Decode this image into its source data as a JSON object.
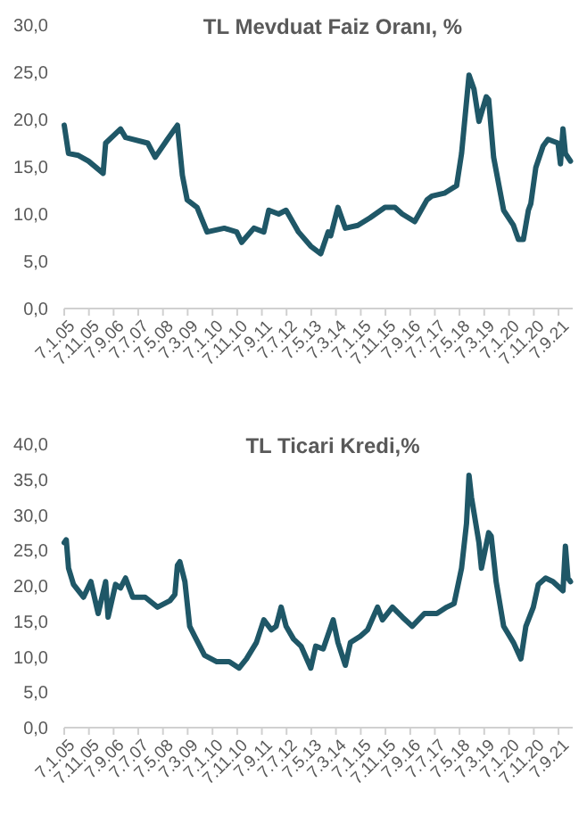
{
  "chart_data": [
    {
      "type": "line",
      "title": "TL  Mevduat Faiz Oranı, %",
      "grid": false,
      "ylim": [
        0,
        30
      ],
      "yticks": [
        {
          "value": 0,
          "label": "0,0"
        },
        {
          "value": 5,
          "label": "5,0"
        },
        {
          "value": 10,
          "label": "10,0"
        },
        {
          "value": 15,
          "label": "15,0"
        },
        {
          "value": 20,
          "label": "20,0"
        },
        {
          "value": 25,
          "label": "25,0"
        },
        {
          "value": 30,
          "label": "30,0"
        }
      ],
      "xlim": [
        "2005-01-07",
        "2022-03-01"
      ],
      "xticks": [
        {
          "value": "2005-01-07",
          "label": "7.1.05"
        },
        {
          "value": "2005-11-07",
          "label": "7.11.05"
        },
        {
          "value": "2006-09-07",
          "label": "7.9.06"
        },
        {
          "value": "2007-07-07",
          "label": "7.7.07"
        },
        {
          "value": "2008-05-07",
          "label": "7.5.08"
        },
        {
          "value": "2009-03-07",
          "label": "7.3.09"
        },
        {
          "value": "2010-01-07",
          "label": "7.1.10"
        },
        {
          "value": "2010-11-07",
          "label": "7.11.10"
        },
        {
          "value": "2011-09-07",
          "label": "7.9.11"
        },
        {
          "value": "2012-07-07",
          "label": "7.7.12"
        },
        {
          "value": "2013-05-07",
          "label": "7.5.13"
        },
        {
          "value": "2014-03-07",
          "label": "7.3.14"
        },
        {
          "value": "2015-01-07",
          "label": "7.1.15"
        },
        {
          "value": "2015-11-07",
          "label": "7.11.15"
        },
        {
          "value": "2016-09-07",
          "label": "7.9.16"
        },
        {
          "value": "2017-07-07",
          "label": "7.7.17"
        },
        {
          "value": "2018-05-07",
          "label": "7.5.18"
        },
        {
          "value": "2019-03-07",
          "label": "7.3.19"
        },
        {
          "value": "2020-01-07",
          "label": "7.1.20"
        },
        {
          "value": "2020-11-07",
          "label": "7.11.20"
        },
        {
          "value": "2021-09-07",
          "label": "7.9.21"
        }
      ],
      "series": [
        {
          "color": "#1f5767",
          "x": [
            "2005-01-07",
            "2005-03",
            "2005-07",
            "2005-11",
            "2006-05",
            "2006-06",
            "2006-12",
            "2007-02",
            "2007-11",
            "2008-02",
            "2008-07",
            "2008-11",
            "2009-01",
            "2009-03",
            "2009-07",
            "2009-11",
            "2010-06",
            "2010-11",
            "2011-01",
            "2011-06",
            "2011-10",
            "2011-12",
            "2012-04",
            "2012-07",
            "2012-12",
            "2013-05",
            "2013-09",
            "2013-12",
            "2014-01",
            "2014-04",
            "2014-07",
            "2014-12",
            "2015-05",
            "2015-11",
            "2016-03",
            "2016-06",
            "2016-11",
            "2017-04",
            "2017-06",
            "2017-11",
            "2018-04",
            "2018-06",
            "2018-09",
            "2018-11",
            "2019-01",
            "2019-04",
            "2019-05",
            "2019-07",
            "2019-11",
            "2020-03",
            "2020-05",
            "2020-07",
            "2020-09",
            "2020-10",
            "2020-12",
            "2021-03",
            "2021-05",
            "2021-09",
            "2021-10",
            "2021-11",
            "2021-12",
            "2022-02"
          ],
          "values": [
            19.4,
            16.4,
            16.2,
            15.6,
            14.3,
            17.5,
            19.0,
            18.1,
            17.5,
            16.0,
            17.9,
            19.4,
            14.1,
            11.5,
            10.7,
            8.1,
            8.5,
            8.1,
            7.0,
            8.5,
            8.1,
            10.4,
            10.0,
            10.4,
            8.1,
            6.6,
            5.8,
            8.1,
            7.7,
            10.7,
            8.5,
            8.8,
            9.6,
            10.7,
            10.7,
            10.0,
            9.2,
            11.5,
            11.9,
            12.2,
            13.0,
            16.4,
            24.7,
            23.2,
            19.8,
            22.4,
            22.1,
            16.0,
            10.4,
            8.8,
            7.3,
            7.3,
            10.4,
            11.1,
            14.9,
            17.2,
            17.9,
            17.5,
            15.3,
            19.0,
            16.4,
            15.6
          ]
        }
      ]
    },
    {
      "type": "line",
      "title": "TL Ticari Kredi,%",
      "grid": false,
      "ylim": [
        0,
        40
      ],
      "yticks": [
        {
          "value": 0,
          "label": "0,0"
        },
        {
          "value": 5,
          "label": "5,0"
        },
        {
          "value": 10,
          "label": "10,0"
        },
        {
          "value": 15,
          "label": "15,0"
        },
        {
          "value": 20,
          "label": "20,0"
        },
        {
          "value": 25,
          "label": "25,0"
        },
        {
          "value": 30,
          "label": "30,0"
        },
        {
          "value": 35,
          "label": "35,0"
        },
        {
          "value": 40,
          "label": "40,0"
        }
      ],
      "xlim": [
        "2005-01-07",
        "2022-03-01"
      ],
      "xticks": [
        {
          "value": "2005-01-07",
          "label": "7.1.05"
        },
        {
          "value": "2005-11-07",
          "label": "7.11.05"
        },
        {
          "value": "2006-09-07",
          "label": "7.9.06"
        },
        {
          "value": "2007-07-07",
          "label": "7.7.07"
        },
        {
          "value": "2008-05-07",
          "label": "7.5.08"
        },
        {
          "value": "2009-03-07",
          "label": "7.3.09"
        },
        {
          "value": "2010-01-07",
          "label": "7.1.10"
        },
        {
          "value": "2010-11-07",
          "label": "7.11.10"
        },
        {
          "value": "2011-09-07",
          "label": "7.9.11"
        },
        {
          "value": "2012-07-07",
          "label": "7.7.12"
        },
        {
          "value": "2013-05-07",
          "label": "7.5.13"
        },
        {
          "value": "2014-03-07",
          "label": "7.3.14"
        },
        {
          "value": "2015-01-07",
          "label": "7.1.15"
        },
        {
          "value": "2015-11-07",
          "label": "7.11.15"
        },
        {
          "value": "2016-09-07",
          "label": "7.9.16"
        },
        {
          "value": "2017-07-07",
          "label": "7.7.17"
        },
        {
          "value": "2018-05-07",
          "label": "7.5.18"
        },
        {
          "value": "2019-03-07",
          "label": "7.3.19"
        },
        {
          "value": "2020-01-07",
          "label": "7.1.20"
        },
        {
          "value": "2020-11-07",
          "label": "7.11.20"
        },
        {
          "value": "2021-09-07",
          "label": "7.9.21"
        }
      ],
      "series": [
        {
          "color": "#1f5767",
          "x": [
            "2005-01-07",
            "2005-02",
            "2005-03",
            "2005-05",
            "2005-09",
            "2005-12",
            "2006-03",
            "2006-06",
            "2006-07",
            "2006-10",
            "2006-12",
            "2007-02",
            "2007-05",
            "2007-10",
            "2008-03",
            "2008-08",
            "2008-10",
            "2008-11",
            "2008-12",
            "2009-02",
            "2009-04",
            "2009-06",
            "2009-10",
            "2010-03",
            "2010-08",
            "2010-12",
            "2011-03",
            "2011-07",
            "2011-10",
            "2012-01",
            "2012-03",
            "2012-05",
            "2012-07",
            "2012-10",
            "2013-01",
            "2013-05",
            "2013-07",
            "2013-10",
            "2014-02",
            "2014-04",
            "2014-07",
            "2014-09",
            "2015-01",
            "2015-04",
            "2015-08",
            "2015-10",
            "2016-02",
            "2016-06",
            "2016-10",
            "2017-03",
            "2017-08",
            "2017-12",
            "2018-03",
            "2018-06",
            "2018-08",
            "2018-09",
            "2018-10",
            "2019-01",
            "2019-02",
            "2019-05",
            "2019-06",
            "2019-08",
            "2019-11",
            "2020-03",
            "2020-06",
            "2020-08",
            "2020-11",
            "2021-01",
            "2021-04",
            "2021-07",
            "2021-11",
            "2021-12",
            "2022-01",
            "2022-02"
          ],
          "values": [
            26.1,
            26.5,
            22.5,
            20.2,
            18.4,
            20.6,
            16.1,
            20.6,
            15.6,
            20.2,
            19.7,
            21.1,
            18.4,
            18.4,
            17.0,
            17.9,
            18.8,
            22.9,
            23.4,
            20.6,
            14.3,
            12.9,
            10.2,
            9.3,
            9.3,
            8.4,
            9.7,
            12.0,
            15.2,
            13.8,
            14.3,
            17.0,
            14.3,
            12.5,
            11.5,
            8.4,
            11.5,
            11.1,
            15.2,
            12.0,
            8.8,
            12.0,
            12.9,
            13.8,
            17.0,
            15.2,
            17.0,
            15.6,
            14.3,
            16.1,
            16.1,
            17.0,
            17.5,
            22.5,
            28.8,
            35.6,
            32.5,
            26.1,
            22.5,
            27.5,
            27.0,
            20.6,
            14.3,
            12.0,
            9.7,
            14.3,
            17.0,
            20.2,
            21.1,
            20.6,
            19.3,
            25.6,
            21.1,
            20.6
          ]
        }
      ]
    }
  ]
}
